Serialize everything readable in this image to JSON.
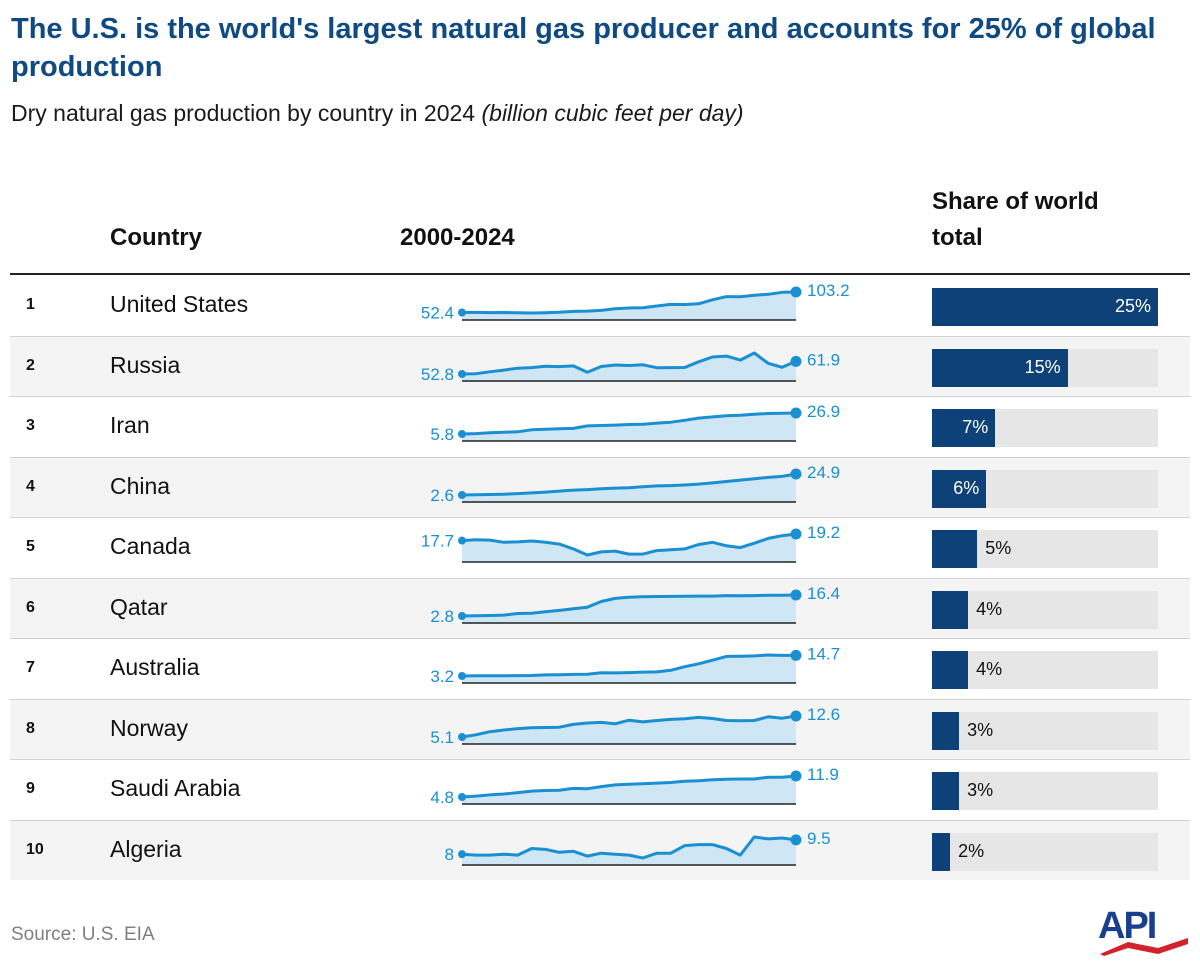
{
  "header": {
    "title": "The U.S. is the world's largest natural gas producer and accounts for 25% of global production",
    "subtitle_main": "Dry natural gas production by country in 2024 ",
    "subtitle_unit": "(billion cubic feet per day)"
  },
  "columns": {
    "country": "Country",
    "range": "2000-2024",
    "share": "Share of world total"
  },
  "footer": {
    "source": "Source: U.S. EIA",
    "logo_text": "API"
  },
  "colors": {
    "title": "#0f4a82",
    "spark_line": "#1a8fd1",
    "spark_fill": "#cfe6f5",
    "spark_label": "#1a8fd1",
    "bar": "#0d4177",
    "bar_track": "#e6e6e6",
    "logo_blue": "#1b3f8f",
    "logo_red": "#d2232a"
  },
  "chart_data": {
    "type": "table",
    "title": "The U.S. is the world's largest natural gas producer and accounts for 25% of global production",
    "subtitle": "Dry natural gas production by country in 2024 (billion cubic feet per day)",
    "sparkline_years": [
      2000,
      2024
    ],
    "rows": [
      {
        "rank": "1",
        "country": "United States",
        "start": 52.4,
        "end": 103.2,
        "start_label": "52.4",
        "end_label": "103.2",
        "share": 25,
        "share_label": "25%",
        "scale_max": 103.2,
        "series": [
          52.4,
          52.6,
          52.1,
          52.5,
          51.8,
          51.2,
          52.0,
          53.3,
          55.1,
          56.0,
          57.6,
          61.8,
          63.6,
          64.3,
          68.6,
          72.6,
          72.3,
          73.9,
          83.8,
          91.8,
          91.4,
          95.0,
          97.6,
          102.5,
          103.2
        ]
      },
      {
        "rank": "2",
        "country": "Russia",
        "start": 52.8,
        "end": 61.9,
        "start_label": "52.8",
        "end_label": "61.9",
        "share": 15,
        "share_label": "15%",
        "scale_max": 103.2,
        "series": [
          52.8,
          53.0,
          54.4,
          55.6,
          57.0,
          57.4,
          58.4,
          58.1,
          58.6,
          54.0,
          58.2,
          59.3,
          58.9,
          59.4,
          57.3,
          57.4,
          57.5,
          61.6,
          65.0,
          65.7,
          62.8,
          67.9,
          60.5,
          57.6,
          61.9
        ]
      },
      {
        "rank": "3",
        "country": "Iran",
        "start": 5.8,
        "end": 26.9,
        "start_label": "5.8",
        "end_label": "26.9",
        "share": 7,
        "share_label": "7%",
        "scale_max": 103.2,
        "series": [
          5.8,
          6.2,
          7.0,
          7.6,
          8.0,
          10.0,
          10.6,
          11.0,
          11.4,
          13.9,
          14.3,
          14.7,
          15.3,
          15.6,
          16.8,
          17.7,
          19.6,
          21.8,
          23.0,
          24.1,
          24.6,
          25.6,
          26.4,
          26.6,
          26.9
        ]
      },
      {
        "rank": "4",
        "country": "China",
        "start": 2.6,
        "end": 24.9,
        "start_label": "2.6",
        "end_label": "24.9",
        "share": 6,
        "share_label": "6%",
        "scale_max": 103.2,
        "series": [
          2.6,
          2.9,
          3.1,
          3.4,
          4.1,
          4.8,
          5.7,
          6.7,
          7.8,
          8.3,
          9.3,
          9.9,
          10.4,
          11.4,
          12.3,
          12.6,
          13.2,
          14.2,
          15.5,
          16.9,
          18.4,
          19.9,
          21.3,
          22.4,
          24.9
        ]
      },
      {
        "rank": "5",
        "country": "Canada",
        "start": 17.7,
        "end": 19.2,
        "start_label": "17.7",
        "end_label": "19.2",
        "share": 5,
        "share_label": "5%",
        "scale_max": 103.2,
        "series": [
          17.7,
          17.9,
          17.8,
          17.3,
          17.4,
          17.6,
          17.3,
          16.9,
          15.8,
          14.4,
          15.1,
          15.3,
          14.6,
          14.6,
          15.4,
          15.6,
          15.8,
          16.8,
          17.3,
          16.5,
          16.1,
          17.1,
          18.2,
          18.8,
          19.2
        ]
      },
      {
        "rank": "6",
        "country": "Qatar",
        "start": 2.8,
        "end": 16.4,
        "start_label": "2.8",
        "end_label": "16.4",
        "share": 4,
        "share_label": "4%",
        "scale_max": 103.2,
        "series": [
          2.8,
          2.9,
          3.1,
          3.4,
          4.4,
          4.6,
          5.5,
          6.4,
          7.5,
          8.5,
          12.2,
          14.2,
          15.0,
          15.3,
          15.4,
          15.5,
          15.6,
          15.7,
          15.7,
          16.0,
          15.9,
          16.0,
          16.2,
          16.3,
          16.4
        ]
      },
      {
        "rank": "7",
        "country": "Australia",
        "start": 3.2,
        "end": 14.7,
        "start_label": "3.2",
        "end_label": "14.7",
        "share": 4,
        "share_label": "4%",
        "scale_max": 103.2,
        "series": [
          3.2,
          3.3,
          3.3,
          3.3,
          3.4,
          3.5,
          3.8,
          3.9,
          4.1,
          4.2,
          5.0,
          4.9,
          5.1,
          5.4,
          5.5,
          6.4,
          8.4,
          10.0,
          12.0,
          14.1,
          14.2,
          14.4,
          14.9,
          14.7,
          14.7
        ]
      },
      {
        "rank": "8",
        "country": "Norway",
        "start": 5.1,
        "end": 12.6,
        "start_label": "5.1",
        "end_label": "12.6",
        "share": 3,
        "share_label": "3%",
        "scale_max": 103.2,
        "series": [
          5.1,
          5.9,
          7.0,
          7.6,
          8.1,
          8.4,
          8.5,
          8.6,
          9.6,
          10.1,
          10.3,
          9.8,
          11.1,
          10.5,
          11.0,
          11.4,
          11.6,
          12.1,
          11.7,
          11.0,
          10.9,
          11.0,
          12.3,
          11.8,
          12.6
        ]
      },
      {
        "rank": "9",
        "country": "Saudi Arabia",
        "start": 4.8,
        "end": 11.9,
        "start_label": "4.8",
        "end_label": "11.9",
        "share": 3,
        "share_label": "3%",
        "scale_max": 103.2,
        "series": [
          4.8,
          5.1,
          5.5,
          5.8,
          6.3,
          6.8,
          7.0,
          7.1,
          7.7,
          7.6,
          8.3,
          8.9,
          9.1,
          9.3,
          9.5,
          9.7,
          10.1,
          10.3,
          10.6,
          10.8,
          10.9,
          10.9,
          11.5,
          11.5,
          11.9
        ]
      },
      {
        "rank": "10",
        "country": "Algeria",
        "start": 8,
        "end": 9.5,
        "start_label": "8",
        "end_label": "9.5",
        "share": 2,
        "share_label": "2%",
        "scale_max": 103.2,
        "series": [
          8.0,
          7.9,
          7.9,
          8.0,
          7.9,
          8.6,
          8.5,
          8.2,
          8.3,
          7.8,
          8.1,
          8.0,
          7.9,
          7.6,
          8.1,
          8.1,
          8.9,
          9.0,
          9.0,
          8.6,
          7.9,
          9.8,
          9.6,
          9.7,
          9.5
        ]
      }
    ]
  }
}
